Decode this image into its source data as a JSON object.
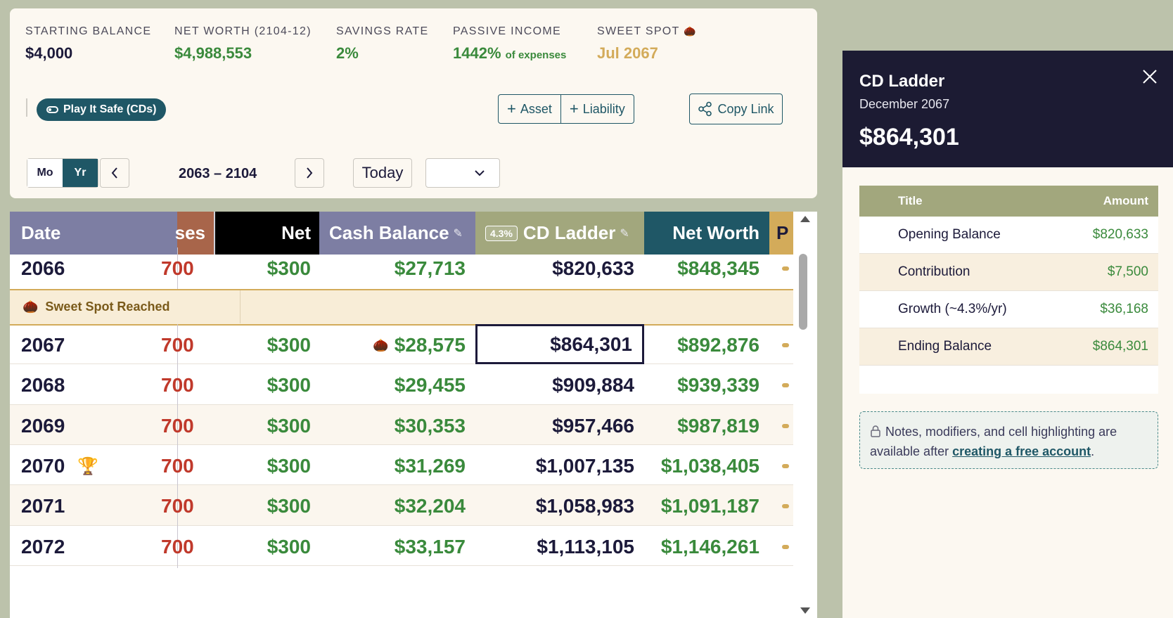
{
  "summary": {
    "stats": [
      {
        "label": "STARTING BALANCE",
        "value": "$4,000",
        "suffix": ""
      },
      {
        "label": "NET WORTH (2104-12)",
        "value": "$4,988,553",
        "suffix": ""
      },
      {
        "label": "SAVINGS RATE",
        "value": "2%",
        "suffix": ""
      },
      {
        "label": "PASSIVE INCOME",
        "value": "1442%",
        "suffix": "of expenses"
      },
      {
        "label": "SWEET SPOT",
        "value": "Jul 2067",
        "suffix": ""
      }
    ]
  },
  "toolbar": {
    "scenario_label": "Play It Safe (CDs)",
    "asset_label": "Asset",
    "liability_label": "Liability",
    "copy_link_label": "Copy Link"
  },
  "view": {
    "mode_month": "Mo",
    "mode_year": "Yr",
    "range": "2063 – 2104",
    "today_label": "Today",
    "select_value": ""
  },
  "table": {
    "headers": {
      "date": "Date",
      "expenses": "ses",
      "net": "Net",
      "cash": "Cash Balance",
      "cd_rate": "4.3%",
      "cd": "CD Ladder",
      "net_worth": "Net Worth",
      "p": "P"
    },
    "sweet_spot_label": "Sweet Spot Reached",
    "rows": [
      {
        "date": "2066",
        "exp": "700",
        "net": "$300",
        "cash": "$27,713",
        "cd": "$820,633",
        "nw": "$848,345"
      },
      {
        "date": "2067",
        "exp": "700",
        "net": "$300",
        "cash": "$28,575",
        "cd": "$864,301",
        "nw": "$892,876"
      },
      {
        "date": "2068",
        "exp": "700",
        "net": "$300",
        "cash": "$29,455",
        "cd": "$909,884",
        "nw": "$939,339"
      },
      {
        "date": "2069",
        "exp": "700",
        "net": "$300",
        "cash": "$30,353",
        "cd": "$957,466",
        "nw": "$987,819"
      },
      {
        "date": "2070",
        "exp": "700",
        "net": "$300",
        "cash": "$31,269",
        "cd": "$1,007,135",
        "nw": "$1,038,405"
      },
      {
        "date": "2071",
        "exp": "700",
        "net": "$300",
        "cash": "$32,204",
        "cd": "$1,058,983",
        "nw": "$1,091,187"
      },
      {
        "date": "2072",
        "exp": "700",
        "net": "$300",
        "cash": "$33,157",
        "cd": "$1,113,105",
        "nw": "$1,146,261"
      }
    ]
  },
  "panel": {
    "title": "CD Ladder",
    "subtitle": "December 2067",
    "amount": "$864,301",
    "col_title": "Title",
    "col_amount": "Amount",
    "rows": [
      {
        "title": "Opening Balance",
        "amount": "$820,633"
      },
      {
        "title": "Contribution",
        "amount": "$7,500"
      },
      {
        "title": "Growth (~4.3%/yr)",
        "amount": "$36,168"
      },
      {
        "title": "Ending Balance",
        "amount": "$864,301"
      }
    ],
    "note_text": "Notes, modifiers, and cell highlighting are available after",
    "note_link": "creating a free account",
    "note_end": "."
  },
  "colors": {
    "accent": "#1f5766",
    "positive": "#3a8a3c",
    "negative": "#c0392b",
    "gold": "#d3ab5a",
    "panel_header": "#1c1b33"
  }
}
